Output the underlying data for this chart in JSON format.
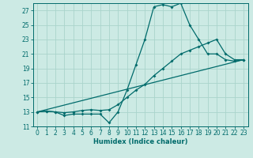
{
  "title": "",
  "xlabel": "Humidex (Indice chaleur)",
  "bg_color": "#cceae4",
  "grid_color": "#aad4cc",
  "line_color": "#006b6b",
  "xlim": [
    -0.5,
    23.5
  ],
  "ylim": [
    11,
    28
  ],
  "yticks": [
    11,
    13,
    15,
    17,
    19,
    21,
    23,
    25,
    27
  ],
  "xticks": [
    0,
    1,
    2,
    3,
    4,
    5,
    6,
    7,
    8,
    9,
    10,
    11,
    12,
    13,
    14,
    15,
    16,
    17,
    18,
    19,
    20,
    21,
    22,
    23
  ],
  "series1_x": [
    0,
    1,
    2,
    3,
    4,
    5,
    6,
    7,
    8,
    9,
    10,
    11,
    12,
    13,
    14,
    15,
    16,
    17,
    18,
    19,
    20,
    21,
    22,
    23
  ],
  "series1_y": [
    13.0,
    13.1,
    13.0,
    12.5,
    12.7,
    12.7,
    12.7,
    12.7,
    11.5,
    13.0,
    16.0,
    19.5,
    23.0,
    27.5,
    27.8,
    27.5,
    28.0,
    25.0,
    23.0,
    21.0,
    21.0,
    20.2,
    20.0,
    20.2
  ],
  "series2_x": [
    0,
    1,
    2,
    3,
    4,
    5,
    6,
    7,
    8,
    9,
    10,
    11,
    12,
    13,
    14,
    15,
    16,
    17,
    18,
    19,
    20,
    21,
    22,
    23
  ],
  "series2_y": [
    13.0,
    13.1,
    13.0,
    12.9,
    13.0,
    13.2,
    13.3,
    13.2,
    13.3,
    14.0,
    15.0,
    16.0,
    16.8,
    18.0,
    19.0,
    20.0,
    21.0,
    21.5,
    22.0,
    22.5,
    23.0,
    21.0,
    20.2,
    20.2
  ],
  "series3_x": [
    0,
    23
  ],
  "series3_y": [
    13.0,
    20.2
  ]
}
